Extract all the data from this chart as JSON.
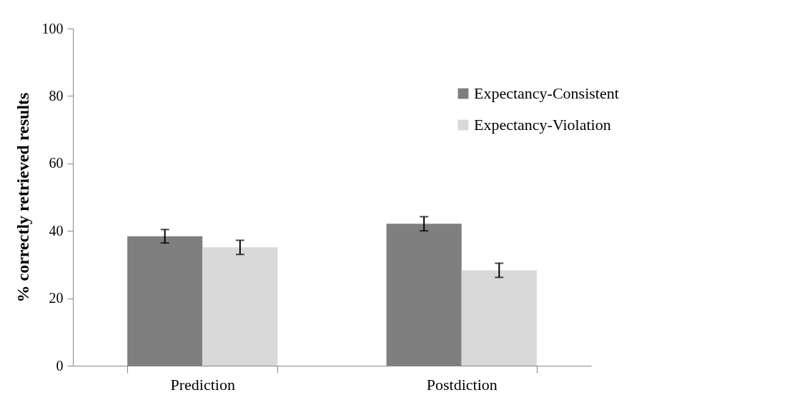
{
  "chart_data": {
    "type": "bar",
    "ylabel": "% correctly retrieved results",
    "categories": [
      "Prediction",
      "Postdiction"
    ],
    "series": [
      {
        "name": "Expectancy-Consistent",
        "color": "#7f7f7f",
        "values": [
          38.4,
          42.1
        ],
        "errors": [
          2,
          2.1
        ]
      },
      {
        "name": "Expectancy-Violation",
        "color": "#d9d9d9",
        "values": [
          35.1,
          28.3
        ],
        "errors": [
          2.1,
          2.1
        ]
      }
    ],
    "ylim": [
      0,
      100
    ],
    "yticks": [
      0,
      20,
      40,
      60,
      80,
      100
    ],
    "grid": false,
    "legend": "top right"
  }
}
